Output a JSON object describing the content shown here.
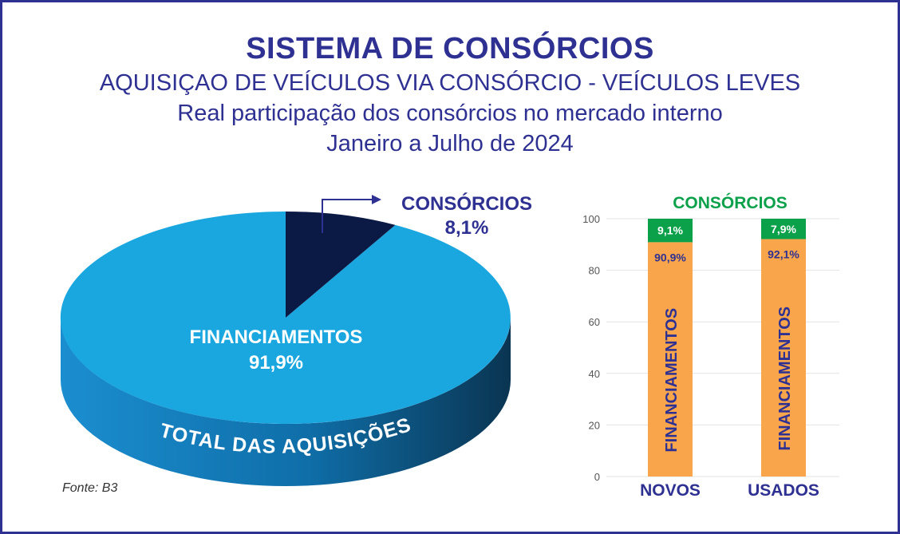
{
  "header": {
    "title": "SISTEMA DE CONSÓRCIOS",
    "subtitle1": "AQUISIÇAO DE VEÍCULOS VIA CONSÓRCIO - VEÍCULOS LEVES",
    "subtitle2": "Real participação dos consórcios no mercado interno",
    "subtitle3": "Janeiro a Julho de 2024"
  },
  "source": "Fonte: B3",
  "colors": {
    "title": "#2e3192",
    "pie_main": "#1aa7e0",
    "pie_side": "#0f5f8c",
    "pie_slice": "#0b1a45",
    "bar_fin": "#f9a54b",
    "bar_cons": "#0aa14a",
    "cons_label": "#0aa14a"
  },
  "chart_data": [
    {
      "type": "pie",
      "rim_label": "TOTAL DAS AQUISIÇÕES",
      "slices": [
        {
          "label": "FINANCIAMENTOS",
          "value": 91.9,
          "display": "91,9%"
        },
        {
          "label": "CONSÓRCIOS",
          "value": 8.1,
          "display": "8,1%"
        }
      ]
    },
    {
      "type": "bar",
      "stacked": true,
      "title": "CONSÓRCIOS",
      "categories": [
        "NOVOS",
        "USADOS"
      ],
      "ylim": [
        0,
        100
      ],
      "yticks": [
        0,
        20,
        40,
        60,
        80,
        100
      ],
      "grid": true,
      "series": [
        {
          "name": "FINANCIAMENTOS",
          "values": [
            90.9,
            92.1
          ],
          "labels": [
            "90,9%",
            "92,1%"
          ]
        },
        {
          "name": "CONSÓRCIOS",
          "values": [
            9.1,
            7.9
          ],
          "labels": [
            "9,1%",
            "7,9%"
          ]
        }
      ]
    }
  ]
}
